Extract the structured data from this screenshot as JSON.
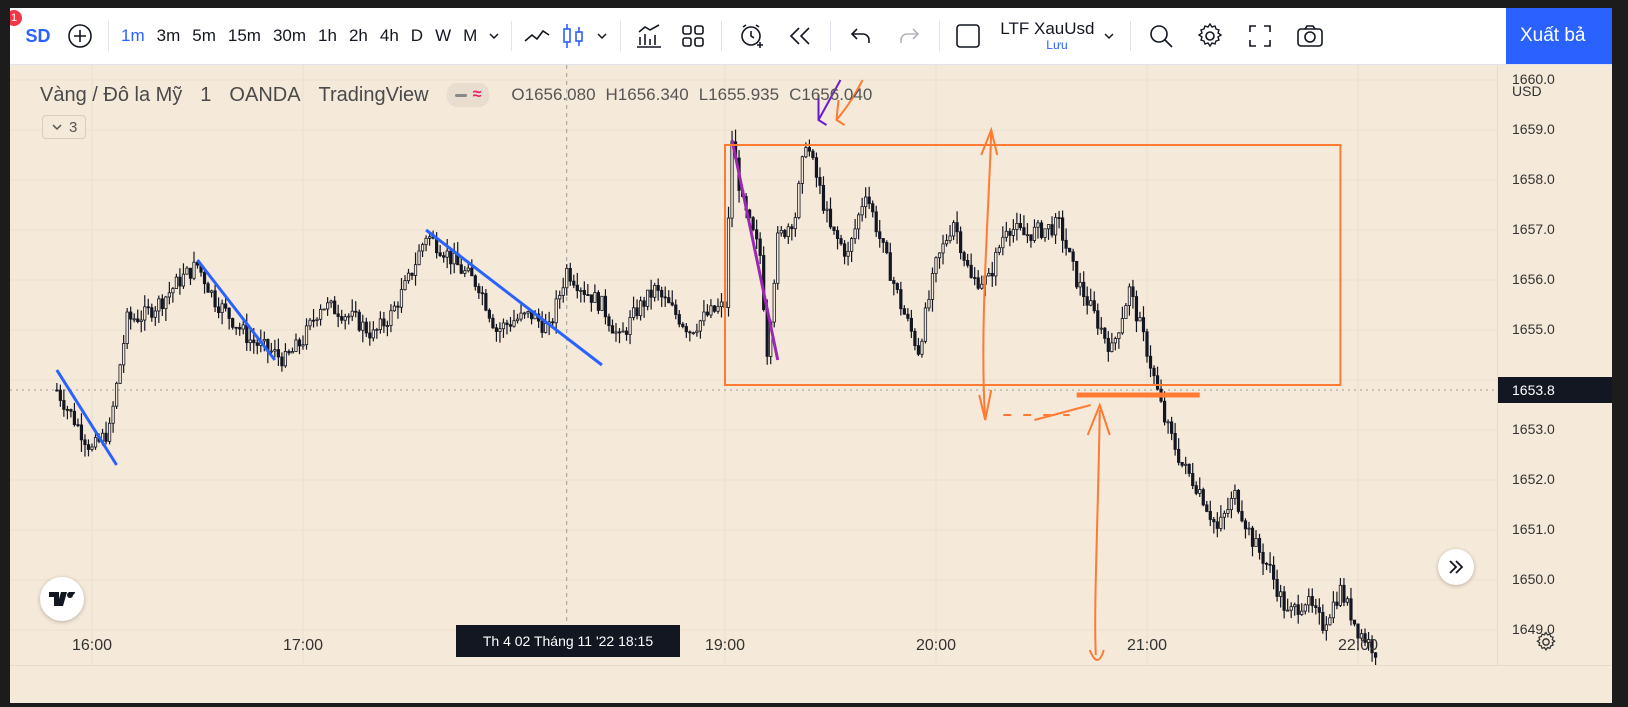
{
  "toolbar": {
    "symbol_short": "SD",
    "notification_count": "1",
    "timeframes": [
      "1m",
      "3m",
      "5m",
      "15m",
      "30m",
      "1h",
      "2h",
      "4h",
      "D",
      "W",
      "M"
    ],
    "active_timeframe": "1m",
    "layout_name": "LTF XauUsd",
    "layout_status": "Lưu",
    "publish_label": "Xuất bả",
    "accent_color": "#2962ff"
  },
  "legend": {
    "symbol_description": "Vàng / Đô la Mỹ",
    "interval": "1",
    "exchange": "OANDA",
    "source": "TradingView",
    "open": "O1656.080",
    "high": "H1656.340",
    "low": "L1655.935",
    "close": "C1656.040",
    "indicator_count": "3"
  },
  "price_axis": {
    "currency": "USD",
    "ticks": [
      "1660.0",
      "1659.0",
      "1658.0",
      "1657.0",
      "1656.0",
      "1655.0",
      "1653.0",
      "1652.0",
      "1651.0",
      "1650.0",
      "1649.0"
    ],
    "current_price": "1653.8"
  },
  "time_axis": {
    "ticks": [
      "16:00",
      "17:00",
      "19:00",
      "20:00",
      "21:00",
      "22:00"
    ],
    "crosshair_label": "Th 4 02 Tháng 11 '22   18:15"
  },
  "chart_data": {
    "type": "candlestick",
    "symbol": "XAUUSD",
    "interval": "1",
    "ylim": [
      1648.3,
      1660.3
    ],
    "x_range": [
      "15:50",
      "22:10"
    ],
    "colors": {
      "background": "#f5e9d9",
      "candles": "#131722",
      "trend_lines": "#2962ff",
      "annotation": "#ff7a33",
      "impulse_line": "#9c27b0"
    },
    "price_path": [
      [
        "15:50",
        1653.8
      ],
      [
        "15:55",
        1653.2
      ],
      [
        "16:00",
        1652.6
      ],
      [
        "16:05",
        1653.0
      ],
      [
        "16:10",
        1655.2
      ],
      [
        "16:15",
        1655.3
      ],
      [
        "16:20",
        1655.6
      ],
      [
        "16:25",
        1656.0
      ],
      [
        "16:30",
        1656.3
      ],
      [
        "16:35",
        1655.6
      ],
      [
        "16:40",
        1655.2
      ],
      [
        "16:45",
        1654.8
      ],
      [
        "16:50",
        1654.6
      ],
      [
        "16:55",
        1654.4
      ],
      [
        "17:00",
        1654.8
      ],
      [
        "17:05",
        1655.5
      ],
      [
        "17:10",
        1655.4
      ],
      [
        "17:15",
        1655.2
      ],
      [
        "17:20",
        1654.9
      ],
      [
        "17:25",
        1655.3
      ],
      [
        "17:30",
        1656.0
      ],
      [
        "17:35",
        1656.9
      ],
      [
        "17:40",
        1656.6
      ],
      [
        "17:45",
        1656.2
      ],
      [
        "17:50",
        1655.9
      ],
      [
        "17:55",
        1655.0
      ],
      [
        "18:00",
        1655.2
      ],
      [
        "18:05",
        1655.3
      ],
      [
        "18:10",
        1655.0
      ],
      [
        "18:15",
        1656.2
      ],
      [
        "18:20",
        1655.8
      ],
      [
        "18:25",
        1655.5
      ],
      [
        "18:30",
        1654.8
      ],
      [
        "18:35",
        1655.4
      ],
      [
        "18:40",
        1655.8
      ],
      [
        "18:45",
        1655.4
      ],
      [
        "18:50",
        1655.0
      ],
      [
        "18:55",
        1655.3
      ],
      [
        "19:00",
        1655.5
      ],
      [
        "19:02",
        1658.8
      ],
      [
        "19:05",
        1657.5
      ],
      [
        "19:10",
        1656.5
      ],
      [
        "19:12",
        1654.6
      ],
      [
        "19:15",
        1656.8
      ],
      [
        "19:20",
        1657.3
      ],
      [
        "19:23",
        1658.8
      ],
      [
        "19:27",
        1657.8
      ],
      [
        "19:30",
        1657.0
      ],
      [
        "19:35",
        1656.5
      ],
      [
        "19:40",
        1657.8
      ],
      [
        "19:45",
        1656.6
      ],
      [
        "19:50",
        1655.5
      ],
      [
        "19:55",
        1654.6
      ],
      [
        "20:00",
        1656.3
      ],
      [
        "20:05",
        1657.2
      ],
      [
        "20:10",
        1656.0
      ],
      [
        "20:15",
        1656.0
      ],
      [
        "20:20",
        1657.1
      ],
      [
        "20:25",
        1656.9
      ],
      [
        "20:30",
        1657.0
      ],
      [
        "20:35",
        1657.1
      ],
      [
        "20:40",
        1656.0
      ],
      [
        "20:45",
        1655.3
      ],
      [
        "20:50",
        1654.6
      ],
      [
        "20:55",
        1655.8
      ],
      [
        "21:00",
        1654.6
      ],
      [
        "21:05",
        1653.2
      ],
      [
        "21:10",
        1652.3
      ],
      [
        "21:15",
        1651.8
      ],
      [
        "21:20",
        1651.0
      ],
      [
        "21:25",
        1651.7
      ],
      [
        "21:30",
        1650.8
      ],
      [
        "21:35",
        1650.2
      ],
      [
        "21:40",
        1649.3
      ],
      [
        "21:45",
        1649.6
      ],
      [
        "21:50",
        1649.1
      ],
      [
        "21:55",
        1649.8
      ],
      [
        "22:00",
        1649.0
      ],
      [
        "22:05",
        1648.6
      ]
    ]
  },
  "annotations": {
    "range_box": {
      "time": [
        "19:00",
        "21:55"
      ],
      "price": [
        1653.9,
        1658.7
      ]
    },
    "breakdown_level": {
      "time": [
        "20:40",
        "21:15"
      ],
      "price": 1653.7
    },
    "trend_lines": [
      {
        "from": [
          "15:50",
          1654.2
        ],
        "to": [
          "16:07",
          1652.3
        ]
      },
      {
        "from": [
          "16:30",
          1656.4
        ],
        "to": [
          "16:52",
          1654.4
        ]
      },
      {
        "from": [
          "17:35",
          1657.0
        ],
        "to": [
          "18:25",
          1654.3
        ]
      }
    ],
    "impulse_line": {
      "from": [
        "19:02",
        1658.8
      ],
      "to": [
        "19:15",
        1654.4
      ]
    }
  }
}
